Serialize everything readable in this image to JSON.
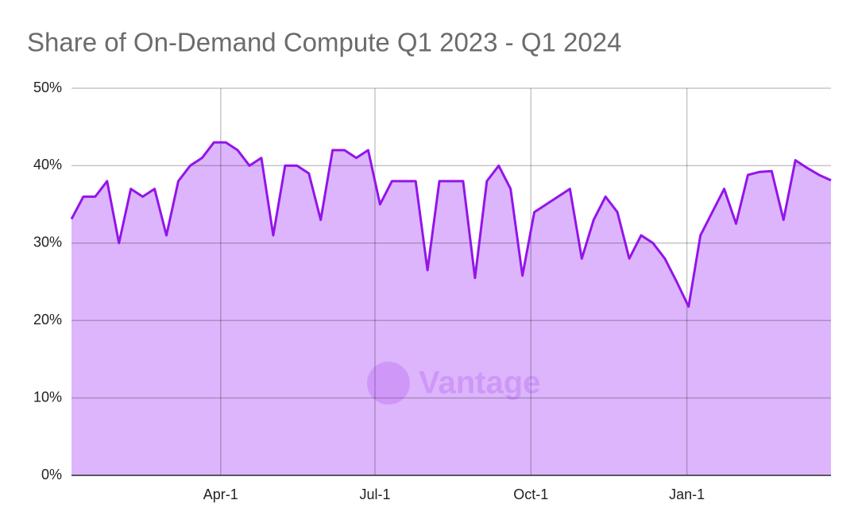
{
  "chart_data": {
    "type": "area",
    "title": "Share of On-Demand Compute Q1 2023 - Q1 2024",
    "watermark": "Vantage",
    "x": [
      0,
      7,
      14,
      21,
      28,
      35,
      42,
      49,
      56,
      63,
      70,
      77,
      84,
      91,
      98,
      105,
      112,
      119,
      126,
      133,
      140,
      147,
      154,
      161,
      168,
      175,
      182,
      189,
      196,
      203,
      210,
      217,
      224,
      231,
      238,
      245,
      252,
      259,
      266,
      273,
      280,
      287,
      294,
      301,
      308,
      315,
      322,
      329,
      336,
      343,
      350,
      357,
      364,
      371,
      378,
      385,
      392,
      399,
      406,
      413,
      420,
      427,
      434,
      441,
      448
    ],
    "series": [
      {
        "name": "On-Demand",
        "color": "#9414ea",
        "fill": "#dcb5fc",
        "values": [
          33.1,
          36,
          36,
          38,
          30,
          37,
          36,
          37,
          31,
          38,
          40,
          41,
          43,
          43,
          42,
          40,
          41,
          31,
          40,
          40,
          39,
          33,
          42,
          42,
          41,
          42,
          35,
          38,
          38,
          38,
          26.5,
          38,
          38,
          38,
          25.5,
          38,
          40,
          37,
          25.8,
          34,
          35,
          36,
          37,
          28,
          33,
          36,
          34,
          28,
          31,
          30,
          28,
          25,
          21.8,
          31,
          34,
          37,
          32.5,
          38.8,
          39.2,
          39.3,
          33,
          40.7,
          39.7,
          38.8,
          38.1
        ]
      }
    ],
    "xlim": [
      0,
      448
    ],
    "xticks": [
      {
        "value": 88,
        "label": "Apr-1"
      },
      {
        "value": 179,
        "label": "Jul-1"
      },
      {
        "value": 271,
        "label": "Oct-1"
      },
      {
        "value": 363,
        "label": "Jan-1"
      }
    ],
    "ylim": [
      0,
      50
    ],
    "yticks": [
      {
        "value": 0,
        "label": "0%"
      },
      {
        "value": 10,
        "label": "10%"
      },
      {
        "value": 20,
        "label": "20%"
      },
      {
        "value": 30,
        "label": "30%"
      },
      {
        "value": 40,
        "label": "40%"
      },
      {
        "value": 50,
        "label": "50%"
      }
    ],
    "grid": true
  }
}
